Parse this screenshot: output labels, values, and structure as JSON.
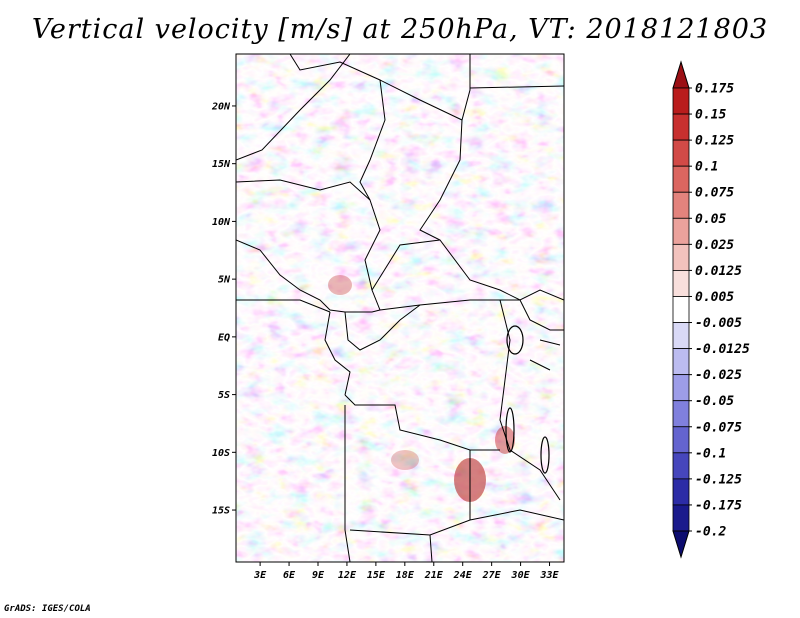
{
  "title": "Vertical velocity [m/s] at 250hPa, VT: 2018121803",
  "credit": "GrADS: IGES/COLA",
  "map": {
    "lat_ticks": [
      "20N",
      "15N",
      "10N",
      "5N",
      "EQ",
      "5S",
      "10S",
      "15S"
    ],
    "lat_values": [
      20,
      15,
      10,
      5,
      0,
      -5,
      -10,
      -15
    ],
    "lon_ticks": [
      "3E",
      "6E",
      "9E",
      "12E",
      "15E",
      "18E",
      "21E",
      "24E",
      "27E",
      "30E",
      "33E"
    ],
    "lon_values": [
      3,
      6,
      9,
      12,
      15,
      18,
      21,
      24,
      27,
      30,
      33
    ],
    "lat_range": [
      -19.5,
      24.5
    ],
    "lon_range": [
      0.5,
      34.5
    ]
  },
  "colorbar": {
    "labels": [
      "0.175",
      "0.15",
      "0.125",
      "0.1",
      "0.075",
      "0.05",
      "0.025",
      "0.0125",
      "0.005",
      "-0.005",
      "-0.0125",
      "-0.025",
      "-0.05",
      "-0.075",
      "-0.1",
      "-0.125",
      "-0.175",
      "-0.2"
    ],
    "colors": [
      "#9b0f14",
      "#b91c1c",
      "#c8302f",
      "#d24a47",
      "#db6660",
      "#e3837d",
      "#eba29c",
      "#f2c2bd",
      "#f8dfdc",
      "#ffffff",
      "#d9d9f6",
      "#bcbcf0",
      "#9d9de8",
      "#8080dd",
      "#6464cf",
      "#4646bc",
      "#2c2ca6",
      "#1a1a8c",
      "#0d0d70"
    ]
  }
}
